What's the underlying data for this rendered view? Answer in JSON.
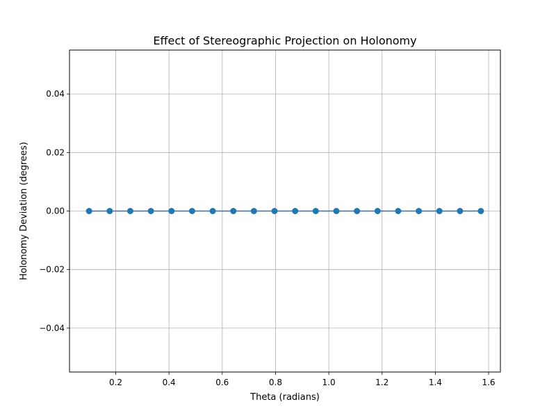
{
  "chart_data": {
    "type": "line",
    "title": "Effect of Stereographic Projection on Holonomy",
    "xlabel": "Theta (radians)",
    "ylabel": "Holonomy Deviation (degrees)",
    "xlim": [
      0.0265,
      1.6443
    ],
    "ylim": [
      -0.055,
      0.055
    ],
    "xticks": [
      0.2,
      0.4,
      0.6,
      0.8,
      1.0,
      1.2,
      1.4,
      1.6
    ],
    "xtick_labels": [
      "0.2",
      "0.4",
      "0.6",
      "0.8",
      "1.0",
      "1.2",
      "1.4",
      "1.6"
    ],
    "yticks": [
      -0.04,
      -0.02,
      0.0,
      0.02,
      0.04
    ],
    "ytick_labels": [
      "−0.04",
      "−0.02",
      "0.00",
      "0.02",
      "0.04"
    ],
    "grid": true,
    "color": "#1f77b4",
    "series": [
      {
        "x": [
          0.1,
          0.1774,
          0.2547,
          0.3321,
          0.4095,
          0.4868,
          0.5642,
          0.6416,
          0.7189,
          0.7963,
          0.8737,
          0.951,
          1.0284,
          1.1058,
          1.1832,
          1.2605,
          1.3379,
          1.4153,
          1.4926,
          1.5708
        ],
        "values": [
          0,
          0,
          0,
          0,
          0,
          0,
          0,
          0,
          0,
          0,
          0,
          0,
          0,
          0,
          0,
          0,
          0,
          0,
          0,
          0
        ]
      }
    ]
  }
}
